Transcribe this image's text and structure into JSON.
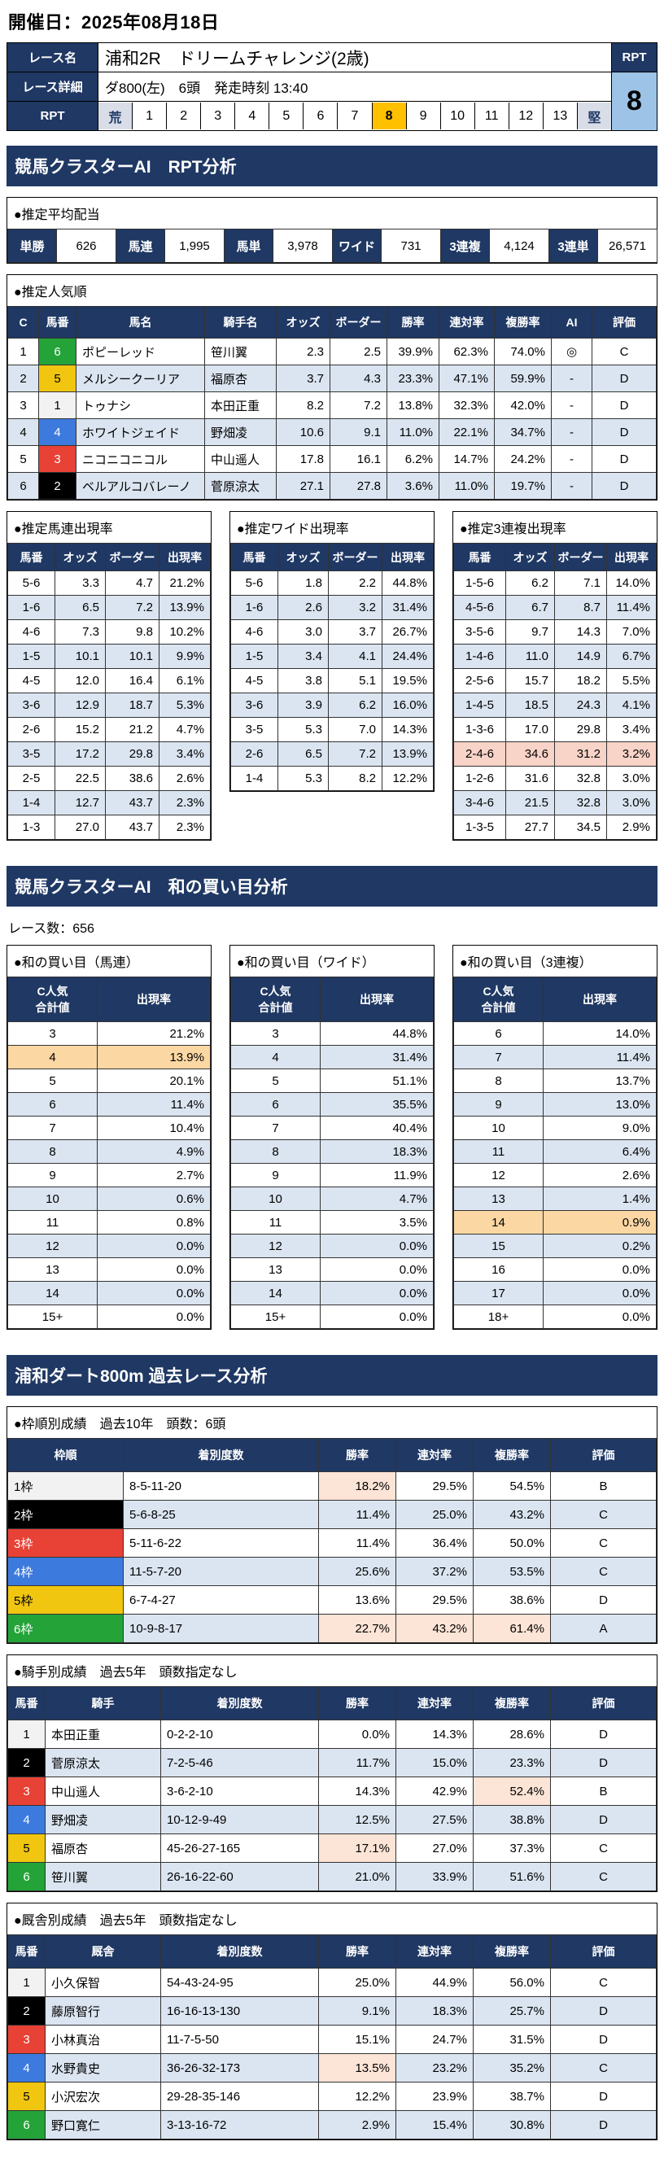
{
  "page": {
    "date_title": "開催日：2025年08月18日"
  },
  "colors": {
    "navy": "#1f3864",
    "amber": "#ffc000",
    "rpt-bg": "#9dc3e6",
    "edge-bg": "#d9dde8",
    "alt-row": "#dbe5f1",
    "hl-cell": "#fce4d6",
    "orange-row": "#fbd7a3",
    "salmon-row": "#f8d3c8",
    "waku1": "#f2f2f2",
    "waku2": "#000000",
    "waku3": "#e84135",
    "waku4": "#3d7add",
    "waku5": "#f0c610",
    "waku6": "#23a338"
  },
  "race": {
    "name_label": "レース名",
    "name": "浦和2R　ドリームチャレンジ(2歳)",
    "detail_label": "レース詳細",
    "detail": "ダ800(左)　6頭　発走時刻 13:40",
    "rpt_label": "RPT",
    "rpt_value": "8",
    "rpt_selected": "8",
    "rpt_strip": [
      "荒",
      "1",
      "2",
      "3",
      "4",
      "5",
      "6",
      "7",
      "8",
      "9",
      "10",
      "11",
      "12",
      "13",
      "堅"
    ]
  },
  "sections": {
    "rpt_analysis": "競馬クラスターAI　RPT分析",
    "wa_analysis": "競馬クラスターAI　和の買い目分析",
    "past_analysis": "浦和ダート800m 過去レース分析"
  },
  "payout": {
    "title": "●推定平均配当",
    "items": [
      {
        "label": "単勝",
        "value": "626"
      },
      {
        "label": "馬連",
        "value": "1,995"
      },
      {
        "label": "馬単",
        "value": "3,978"
      },
      {
        "label": "ワイド",
        "value": "731"
      },
      {
        "label": "3連複",
        "value": "4,124"
      },
      {
        "label": "3連単",
        "value": "26,571"
      }
    ]
  },
  "popularity": {
    "title": "●推定人気順",
    "headers": [
      "C",
      "馬番",
      "馬名",
      "騎手名",
      "オッズ",
      "ボーダー",
      "勝率",
      "連対率",
      "複勝率",
      "AI",
      "評価"
    ],
    "rows": [
      {
        "w": 6,
        "c": [
          "1",
          "6",
          "ポピーレッド",
          "笹川翼",
          "2.3",
          "2.5",
          "39.9%",
          "62.3%",
          "74.0%",
          "◎",
          "C"
        ]
      },
      {
        "w": 5,
        "c": [
          "2",
          "5",
          "メルシークーリア",
          "福原杏",
          "3.7",
          "4.3",
          "23.3%",
          "47.1%",
          "59.9%",
          "-",
          "D"
        ]
      },
      {
        "w": 1,
        "c": [
          "3",
          "1",
          "トゥナシ",
          "本田正重",
          "8.2",
          "7.2",
          "13.8%",
          "32.3%",
          "42.0%",
          "-",
          "D"
        ]
      },
      {
        "w": 4,
        "c": [
          "4",
          "4",
          "ホワイトジェイド",
          "野畑凌",
          "10.6",
          "9.1",
          "11.0%",
          "22.1%",
          "34.7%",
          "-",
          "D"
        ]
      },
      {
        "w": 3,
        "c": [
          "5",
          "3",
          "ニコニコニコル",
          "中山遥人",
          "17.8",
          "16.1",
          "6.2%",
          "14.7%",
          "24.2%",
          "-",
          "D"
        ]
      },
      {
        "w": 2,
        "c": [
          "6",
          "2",
          "ベルアルコバレーノ",
          "菅原涼太",
          "27.1",
          "27.8",
          "3.6%",
          "11.0%",
          "19.7%",
          "-",
          "D"
        ]
      }
    ]
  },
  "umaren": {
    "title": "●推定馬連出現率",
    "headers": [
      "馬番",
      "オッズ",
      "ボーダー",
      "出現率"
    ],
    "rows": [
      {
        "c": [
          "5-6",
          "3.3",
          "4.7",
          "21.2%"
        ]
      },
      {
        "c": [
          "1-6",
          "6.5",
          "7.2",
          "13.9%"
        ]
      },
      {
        "c": [
          "4-6",
          "7.3",
          "9.8",
          "10.2%"
        ]
      },
      {
        "c": [
          "1-5",
          "10.1",
          "10.1",
          "9.9%"
        ]
      },
      {
        "c": [
          "4-5",
          "12.0",
          "16.4",
          "6.1%"
        ]
      },
      {
        "c": [
          "3-6",
          "12.9",
          "18.7",
          "5.3%"
        ]
      },
      {
        "c": [
          "2-6",
          "15.2",
          "21.2",
          "4.7%"
        ]
      },
      {
        "c": [
          "3-5",
          "17.2",
          "29.8",
          "3.4%"
        ]
      },
      {
        "c": [
          "2-5",
          "22.5",
          "38.6",
          "2.6%"
        ]
      },
      {
        "c": [
          "1-4",
          "12.7",
          "43.7",
          "2.3%"
        ]
      },
      {
        "c": [
          "1-3",
          "27.0",
          "43.7",
          "2.3%"
        ]
      }
    ]
  },
  "wide": {
    "title": "●推定ワイド出現率",
    "headers": [
      "馬番",
      "オッズ",
      "ボーダー",
      "出現率"
    ],
    "rows": [
      {
        "c": [
          "5-6",
          "1.8",
          "2.2",
          "44.8%"
        ]
      },
      {
        "c": [
          "1-6",
          "2.6",
          "3.2",
          "31.4%"
        ]
      },
      {
        "c": [
          "4-6",
          "3.0",
          "3.7",
          "26.7%"
        ]
      },
      {
        "c": [
          "1-5",
          "3.4",
          "4.1",
          "24.4%"
        ]
      },
      {
        "c": [
          "4-5",
          "3.8",
          "5.1",
          "19.5%"
        ]
      },
      {
        "c": [
          "3-6",
          "3.9",
          "6.2",
          "16.0%"
        ]
      },
      {
        "c": [
          "3-5",
          "5.3",
          "7.0",
          "14.3%"
        ]
      },
      {
        "c": [
          "2-6",
          "6.5",
          "7.2",
          "13.9%"
        ]
      },
      {
        "c": [
          "1-4",
          "5.3",
          "8.2",
          "12.2%"
        ]
      }
    ]
  },
  "sanrenpuku": {
    "title": "●推定3連複出現率",
    "headers": [
      "馬番",
      "オッズ",
      "ボーダー",
      "出現率"
    ],
    "rows": [
      {
        "c": [
          "1-5-6",
          "6.2",
          "7.1",
          "14.0%"
        ]
      },
      {
        "c": [
          "4-5-6",
          "6.7",
          "8.7",
          "11.4%"
        ]
      },
      {
        "c": [
          "3-5-6",
          "9.7",
          "14.3",
          "7.0%"
        ]
      },
      {
        "c": [
          "1-4-6",
          "11.0",
          "14.9",
          "6.7%"
        ]
      },
      {
        "c": [
          "2-5-6",
          "15.7",
          "18.2",
          "5.5%"
        ]
      },
      {
        "c": [
          "1-4-5",
          "18.5",
          "24.3",
          "4.1%"
        ]
      },
      {
        "c": [
          "1-3-6",
          "17.0",
          "29.8",
          "3.4%"
        ]
      },
      {
        "bg": "salmon",
        "c": [
          "2-4-6",
          "34.6",
          "31.2",
          "3.2%"
        ]
      },
      {
        "c": [
          "1-2-6",
          "31.6",
          "32.8",
          "3.0%"
        ]
      },
      {
        "c": [
          "3-4-6",
          "21.5",
          "32.8",
          "3.0%"
        ]
      },
      {
        "c": [
          "1-3-5",
          "27.7",
          "34.5",
          "2.9%"
        ]
      }
    ]
  },
  "wa": {
    "race_count": "レース数：656",
    "umaren": {
      "title": "●和の買い目（馬連）",
      "headers": [
        "C人気\n合計値",
        "出現率"
      ],
      "rows": [
        {
          "c": [
            "3",
            "21.2%"
          ]
        },
        {
          "bg": "orange",
          "c": [
            "4",
            "13.9%"
          ]
        },
        {
          "c": [
            "5",
            "20.1%"
          ]
        },
        {
          "c": [
            "6",
            "11.4%"
          ]
        },
        {
          "c": [
            "7",
            "10.4%"
          ]
        },
        {
          "c": [
            "8",
            "4.9%"
          ]
        },
        {
          "c": [
            "9",
            "2.7%"
          ]
        },
        {
          "c": [
            "10",
            "0.6%"
          ]
        },
        {
          "c": [
            "11",
            "0.8%"
          ]
        },
        {
          "c": [
            "12",
            "0.0%"
          ]
        },
        {
          "c": [
            "13",
            "0.0%"
          ]
        },
        {
          "c": [
            "14",
            "0.0%"
          ]
        },
        {
          "c": [
            "15+",
            "0.0%"
          ]
        }
      ]
    },
    "wide": {
      "title": "●和の買い目（ワイド）",
      "headers": [
        "C人気\n合計値",
        "出現率"
      ],
      "rows": [
        {
          "c": [
            "3",
            "44.8%"
          ]
        },
        {
          "c": [
            "4",
            "31.4%"
          ]
        },
        {
          "c": [
            "5",
            "51.1%"
          ]
        },
        {
          "c": [
            "6",
            "35.5%"
          ]
        },
        {
          "c": [
            "7",
            "40.4%"
          ]
        },
        {
          "c": [
            "8",
            "18.3%"
          ]
        },
        {
          "c": [
            "9",
            "11.9%"
          ]
        },
        {
          "c": [
            "10",
            "4.7%"
          ]
        },
        {
          "c": [
            "11",
            "3.5%"
          ]
        },
        {
          "c": [
            "12",
            "0.0%"
          ]
        },
        {
          "c": [
            "13",
            "0.0%"
          ]
        },
        {
          "c": [
            "14",
            "0.0%"
          ]
        },
        {
          "c": [
            "15+",
            "0.0%"
          ]
        }
      ]
    },
    "sanrenpuku": {
      "title": "●和の買い目（3連複）",
      "headers": [
        "C人気\n合計値",
        "出現率"
      ],
      "rows": [
        {
          "c": [
            "6",
            "14.0%"
          ]
        },
        {
          "c": [
            "7",
            "11.4%"
          ]
        },
        {
          "c": [
            "8",
            "13.7%"
          ]
        },
        {
          "c": [
            "9",
            "13.0%"
          ]
        },
        {
          "c": [
            "10",
            "9.0%"
          ]
        },
        {
          "c": [
            "11",
            "6.4%"
          ]
        },
        {
          "c": [
            "12",
            "2.6%"
          ]
        },
        {
          "c": [
            "13",
            "1.4%"
          ]
        },
        {
          "bg": "orange",
          "c": [
            "14",
            "0.9%"
          ]
        },
        {
          "c": [
            "15",
            "0.2%"
          ]
        },
        {
          "c": [
            "16",
            "0.0%"
          ]
        },
        {
          "c": [
            "17",
            "0.0%"
          ]
        },
        {
          "c": [
            "18+",
            "0.0%"
          ]
        }
      ]
    }
  },
  "waku_table": {
    "title": "●枠順別成績　過去10年　頭数：6頭",
    "headers": [
      "枠順",
      "着別度数",
      "勝率",
      "連対率",
      "複勝率",
      "評価"
    ],
    "rows": [
      {
        "w": 1,
        "hl": [
          2
        ],
        "c": [
          "1枠",
          "8-5-11-20",
          "18.2%",
          "29.5%",
          "54.5%",
          "B"
        ]
      },
      {
        "w": 2,
        "c": [
          "2枠",
          "5-6-8-25",
          "11.4%",
          "25.0%",
          "43.2%",
          "C"
        ]
      },
      {
        "w": 3,
        "c": [
          "3枠",
          "5-11-6-22",
          "11.4%",
          "36.4%",
          "50.0%",
          "C"
        ]
      },
      {
        "w": 4,
        "c": [
          "4枠",
          "11-5-7-20",
          "25.6%",
          "37.2%",
          "53.5%",
          "C"
        ]
      },
      {
        "w": 5,
        "c": [
          "5枠",
          "6-7-4-27",
          "13.6%",
          "29.5%",
          "38.6%",
          "D"
        ]
      },
      {
        "w": 6,
        "hl": [
          2,
          3,
          4
        ],
        "c": [
          "6枠",
          "10-9-8-17",
          "22.7%",
          "43.2%",
          "61.4%",
          "A"
        ]
      }
    ]
  },
  "jockey_table": {
    "title": "●騎手別成績　過去5年　頭数指定なし",
    "headers": [
      "馬番",
      "騎手",
      "着別度数",
      "勝率",
      "連対率",
      "複勝率",
      "評価"
    ],
    "rows": [
      {
        "w": 1,
        "c": [
          "1",
          "本田正重",
          "0-2-2-10",
          "0.0%",
          "14.3%",
          "28.6%",
          "D"
        ]
      },
      {
        "w": 2,
        "c": [
          "2",
          "菅原涼太",
          "7-2-5-46",
          "11.7%",
          "15.0%",
          "23.3%",
          "D"
        ]
      },
      {
        "w": 3,
        "hl": [
          5
        ],
        "c": [
          "3",
          "中山遥人",
          "3-6-2-10",
          "14.3%",
          "42.9%",
          "52.4%",
          "B"
        ]
      },
      {
        "w": 4,
        "c": [
          "4",
          "野畑凌",
          "10-12-9-49",
          "12.5%",
          "27.5%",
          "38.8%",
          "D"
        ]
      },
      {
        "w": 5,
        "hl": [
          3
        ],
        "c": [
          "5",
          "福原杏",
          "45-26-27-165",
          "17.1%",
          "27.0%",
          "37.3%",
          "C"
        ]
      },
      {
        "w": 6,
        "c": [
          "6",
          "笹川翼",
          "26-16-22-60",
          "21.0%",
          "33.9%",
          "51.6%",
          "C"
        ]
      }
    ]
  },
  "stable_table": {
    "title": "●厩舎別成績　過去5年　頭数指定なし",
    "headers": [
      "馬番",
      "厩舎",
      "着別度数",
      "勝率",
      "連対率",
      "複勝率",
      "評価"
    ],
    "rows": [
      {
        "w": 1,
        "c": [
          "1",
          "小久保智",
          "54-43-24-95",
          "25.0%",
          "44.9%",
          "56.0%",
          "C"
        ]
      },
      {
        "w": 2,
        "c": [
          "2",
          "藤原智行",
          "16-16-13-130",
          "9.1%",
          "18.3%",
          "25.7%",
          "D"
        ]
      },
      {
        "w": 3,
        "c": [
          "3",
          "小林真治",
          "11-7-5-50",
          "15.1%",
          "24.7%",
          "31.5%",
          "D"
        ]
      },
      {
        "w": 4,
        "hl": [
          3
        ],
        "c": [
          "4",
          "水野貴史",
          "36-26-32-173",
          "13.5%",
          "23.2%",
          "35.2%",
          "C"
        ]
      },
      {
        "w": 5,
        "c": [
          "5",
          "小沢宏次",
          "29-28-35-146",
          "12.2%",
          "23.9%",
          "38.7%",
          "D"
        ]
      },
      {
        "w": 6,
        "c": [
          "6",
          "野口寛仁",
          "3-13-16-72",
          "2.9%",
          "15.4%",
          "30.8%",
          "D"
        ]
      }
    ]
  }
}
